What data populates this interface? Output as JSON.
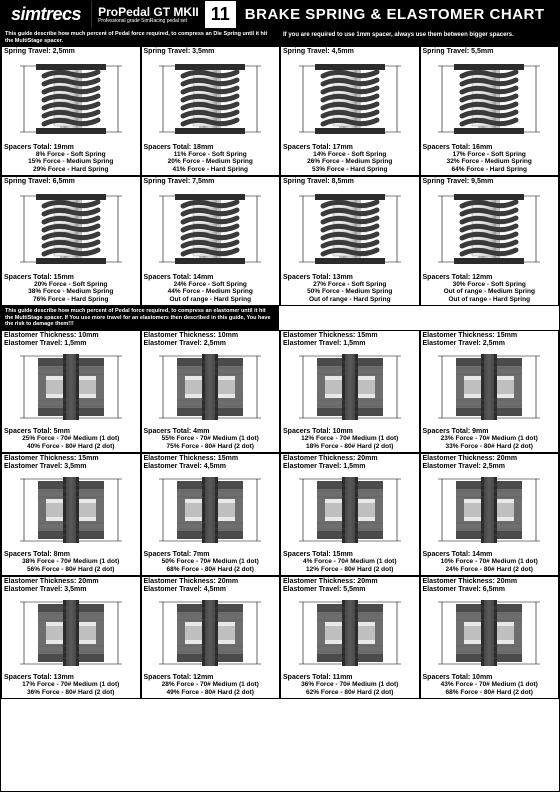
{
  "header": {
    "logo": "simtrecs",
    "product_name": "ProPedal GT MKII",
    "product_sub": "Professional grade SimRacing pedal set",
    "page_num": "11",
    "title": "BRAKE SPRING & ELASTOMER CHART"
  },
  "notes": {
    "spring_guide": "This guide describe how much percent of Pedal force required, to compress an Die Spring until it hit the MultiStage spacer.",
    "spacer_note": "If you are required to use 1mm spacer, always use them between bigger spacers.",
    "elastomer_guide": "This guide describe how much percent of Pedal force required, to compress an elastomer until it hit the MultiStage spacer. If You use more travel for an elastomers then described in this guide, You have the risk to damage them!!!"
  },
  "spring_rows": [
    [
      {
        "travel": "Spring Travel: 2,5mm",
        "total": "Spacers Total: 19mm",
        "f": [
          "8% Force - Soft Spring",
          "15% Force - Medium Spring",
          "29% Force - Hard Spring"
        ]
      },
      {
        "travel": "Spring Travel: 3,5mm",
        "total": "Spacers Total: 18mm",
        "f": [
          "11% Force - Soft Spring",
          "20% Force - Medium Spring",
          "41% Force - Hard Spring"
        ]
      },
      {
        "travel": "Spring Travel: 4,5mm",
        "total": "Spacers Total: 17mm",
        "f": [
          "14% Force - Soft Spring",
          "26% Force - Medium Spring",
          "53% Force - Hard Spring"
        ]
      },
      {
        "travel": "Spring Travel: 5,5mm",
        "total": "Spacers Total: 16mm",
        "f": [
          "17% Force - Soft Spring",
          "32% Force - Medium Spring",
          "64% Force - Hard Spring"
        ]
      }
    ],
    [
      {
        "travel": "Spring Travel: 6,5mm",
        "total": "Spacers Total: 15mm",
        "f": [
          "20% Force - Soft Spring",
          "38% Force - Medium Spring",
          "76% Force - Hard Spring"
        ]
      },
      {
        "travel": "Spring Travel: 7,5mm",
        "total": "Spacers Total: 14mm",
        "f": [
          "24% Force - Soft Spring",
          "44% Force - Medium Spring",
          "Out of range - Hard Spring"
        ]
      },
      {
        "travel": "Spring Travel: 8,5mm",
        "total": "Spacers Total: 13mm",
        "f": [
          "27% Force - Soft Spring",
          "50% Force - Medium Spring",
          "Out of range - Hard Spring"
        ]
      },
      {
        "travel": "Spring Travel: 9,5mm",
        "total": "Spacers Total: 12mm",
        "f": [
          "30% Force - Soft Spring",
          "Out of range - Medium Spring",
          "Out of range - Hard Spring"
        ]
      }
    ]
  ],
  "elastomer_rows": [
    [
      {
        "thick": "Elastomer Thickness: 10mm",
        "trav": "Elastomer Travel: 1,5mm",
        "total": "Spacers Total: 5mm",
        "f": [
          "25% Force - 70# Medium (1 dot)",
          "40% Force - 80# Hard (2 dot)"
        ]
      },
      {
        "thick": "Elastomer Thickness: 10mm",
        "trav": "Elastomer Travel: 2,5mm",
        "total": "Spacers Total: 4mm",
        "f": [
          "55% Force - 70# Medium (1 dot)",
          "75% Force - 80# Hard (2 dot)"
        ]
      },
      {
        "thick": "Elastomer Thickness: 15mm",
        "trav": "Elastomer Travel: 1,5mm",
        "total": "Spacers Total: 10mm",
        "f": [
          "12% Force - 70# Medium (1 dot)",
          "18% Force - 80# Hard (2 dot)"
        ]
      },
      {
        "thick": "Elastomer Thickness: 15mm",
        "trav": "Elastomer Travel: 2,5mm",
        "total": "Spacers Total: 9mm",
        "f": [
          "23% Force - 70# Medium (1 dot)",
          "33% Force - 80# Hard (2 dot)"
        ]
      }
    ],
    [
      {
        "thick": "Elastomer Thickness: 15mm",
        "trav": "Elastomer Travel: 3,5mm",
        "total": "Spacers Total: 8mm",
        "f": [
          "38% Force - 70# Medium (1 dot)",
          "56% Force - 80# Hard (2 dot)"
        ]
      },
      {
        "thick": "Elastomer Thickness: 15mm",
        "trav": "Elastomer Travel: 4,5mm",
        "total": "Spacers Total: 7mm",
        "f": [
          "50% Force - 70# Medium (1 dot)",
          "68% Force - 80# Hard (2 dot)"
        ]
      },
      {
        "thick": "Elastomer Thickness: 20mm",
        "trav": "Elastomer Travel: 1,5mm",
        "total": "Spacers Total: 15mm",
        "f": [
          "4% Force - 70# Medium (1 dot)",
          "12% Force - 80# Hard (2 dot)"
        ]
      },
      {
        "thick": "Elastomer Thickness: 20mm",
        "trav": "Elastomer Travel: 2,5mm",
        "total": "Spacers Total: 14mm",
        "f": [
          "10% Force - 70# Medium (1 dot)",
          "24% Force - 80# Hard (2 dot)"
        ]
      }
    ],
    [
      {
        "thick": "Elastomer Thickness: 20mm",
        "trav": "Elastomer Travel: 3,5mm",
        "total": "Spacers Total: 13mm",
        "f": [
          "17% Force - 70# Medium (1 dot)",
          "36% Force - 80# Hard (2 dot)"
        ]
      },
      {
        "thick": "Elastomer Thickness: 20mm",
        "trav": "Elastomer Travel: 4,5mm",
        "total": "Spacers Total: 12mm",
        "f": [
          "28% Force - 70# Medium (1 dot)",
          "49% Force - 80# Hard (2 dot)"
        ]
      },
      {
        "thick": "Elastomer Thickness: 20mm",
        "trav": "Elastomer Travel: 5,5mm",
        "total": "Spacers Total: 11mm",
        "f": [
          "36% Force - 70# Medium (1 dot)",
          "62% Force - 80# Hard (2 dot)"
        ]
      },
      {
        "thick": "Elastomer Thickness: 20mm",
        "trav": "Elastomer Travel: 6,5mm",
        "total": "Spacers Total: 10mm",
        "f": [
          "43% Force - 70# Medium (1 dot)",
          "68% Force - 80# Hard (2 dot)"
        ]
      }
    ]
  ],
  "colors": {
    "black": "#000000",
    "white": "#ffffff",
    "coil": "#3a3a3a",
    "shaft_light": "#e8e8e8",
    "shaft_mid": "#bfbfbf",
    "shaft_dark": "#9a9a9a",
    "cap": "#2b2b2b",
    "elastomer": "#6e6e6e",
    "elastomer_dark": "#4a4a4a",
    "dim_line": "#000000"
  }
}
